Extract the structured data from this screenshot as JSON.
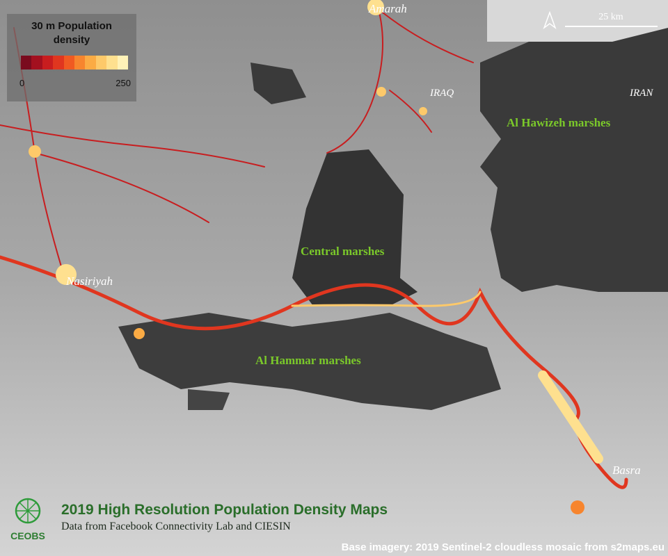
{
  "legend": {
    "title": "30 m Population density",
    "min": 0,
    "max": 250,
    "colors": [
      "#7a0b1e",
      "#a3101f",
      "#c81d1f",
      "#e0361f",
      "#f05a22",
      "#f7852e",
      "#fbab44",
      "#fdc96a",
      "#fee08f",
      "#fff2b8"
    ]
  },
  "scale": {
    "label": "25 km"
  },
  "places": {
    "amarah": "Amarah",
    "nasiriyah": "Nasiriyah",
    "basra": "Basra"
  },
  "countries": {
    "iraq": "IRAQ",
    "iran": "IRAN"
  },
  "marshes": {
    "hawizeh": "Al Hawizeh marshes",
    "central": "Central marshes",
    "hammar": "Al Hammar marshes"
  },
  "footer": {
    "logo": "CEOBS",
    "title": "2019 High Resolution Population Density Maps",
    "subtitle": "Data from Facebook Connectivity Lab and CIESIN",
    "credit": "Base imagery: 2019 Sentinel-2 cloudless mosaic from s2maps.eu"
  }
}
